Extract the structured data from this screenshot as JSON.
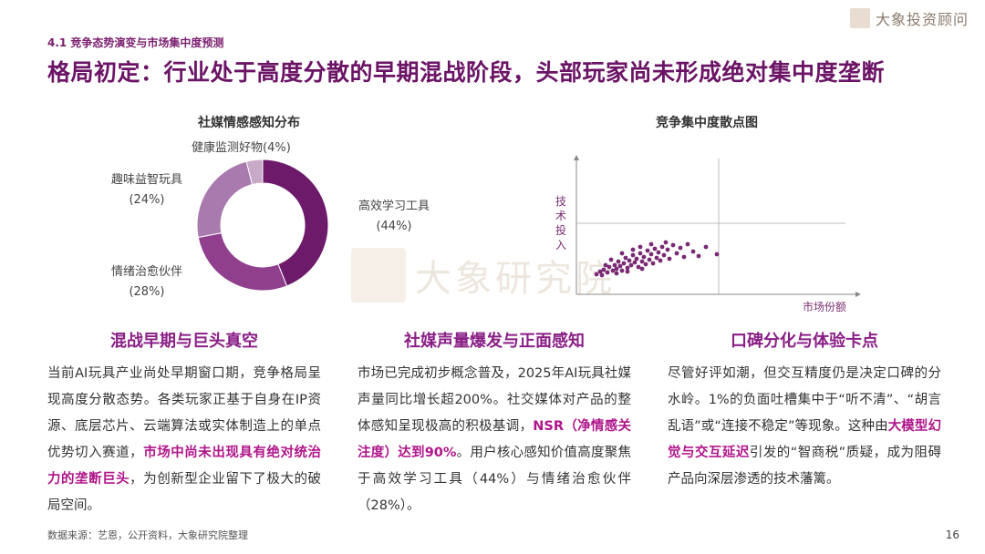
{
  "header": {
    "section": "4.1  竞争态势演变与市场集中度预测",
    "title": "格局初定：行业处于高度分散的早期混战阶段，头部玩家尚未形成绝对集中度垄断",
    "brand": "大象投资顾问"
  },
  "watermark": "大象研究院",
  "donut": {
    "title": "社媒情感感知分布",
    "slices": [
      {
        "name": "高效学习工具",
        "pct": "(44%)",
        "value": 44,
        "color": "#6d1a6a"
      },
      {
        "name": "情绪治愈伙伴",
        "pct": "(28%)",
        "value": 28,
        "color": "#8f3f8c"
      },
      {
        "name": "趣味益智玩具",
        "pct": "(24%)",
        "value": 24,
        "color": "#a87aad"
      },
      {
        "name": "健康监测好物(4%)",
        "pct": "",
        "value": 4,
        "color": "#c8a9c8"
      }
    ]
  },
  "chart_data": {
    "type": "scatter",
    "title": "竞争集中度散点图",
    "xlabel": "市场份额",
    "ylabel": "技术投入",
    "points": [
      [
        0.6,
        0.6
      ],
      [
        0.8,
        0.9
      ],
      [
        1.0,
        1.1
      ],
      [
        1.2,
        0.8
      ],
      [
        1.3,
        1.4
      ],
      [
        1.5,
        1.0
      ],
      [
        1.6,
        1.6
      ],
      [
        1.7,
        1.2
      ],
      [
        1.8,
        2.0
      ],
      [
        1.9,
        1.5
      ],
      [
        2.0,
        1.0
      ],
      [
        2.1,
        1.8
      ],
      [
        2.2,
        2.4
      ],
      [
        2.3,
        1.3
      ],
      [
        2.4,
        2.1
      ],
      [
        2.5,
        1.6
      ],
      [
        2.6,
        2.7
      ],
      [
        2.7,
        1.9
      ],
      [
        2.8,
        2.3
      ],
      [
        2.9,
        1.4
      ],
      [
        3.0,
        2.9
      ],
      [
        3.1,
        2.0
      ],
      [
        3.2,
        2.5
      ],
      [
        3.3,
        1.7
      ],
      [
        3.4,
        3.2
      ],
      [
        3.5,
        2.2
      ],
      [
        3.6,
        2.8
      ],
      [
        3.7,
        1.8
      ],
      [
        3.8,
        3.4
      ],
      [
        3.9,
        2.4
      ],
      [
        4.0,
        3.0
      ],
      [
        4.1,
        2.1
      ],
      [
        4.2,
        3.6
      ],
      [
        4.3,
        2.7
      ],
      [
        4.5,
        3.3
      ],
      [
        4.6,
        2.3
      ],
      [
        4.8,
        3.8
      ],
      [
        5.0,
        2.9
      ],
      [
        5.2,
        3.5
      ],
      [
        5.4,
        2.5
      ],
      [
        5.6,
        3.9
      ],
      [
        5.9,
        3.1
      ],
      [
        6.2,
        2.6
      ],
      [
        6.6,
        3.6
      ],
      [
        7.2,
        2.8
      ],
      [
        1.4,
        2.2
      ],
      [
        2.0,
        2.9
      ],
      [
        3.0,
        3.6
      ],
      [
        3.6,
        3.9
      ],
      [
        2.6,
        3.3
      ],
      [
        4.4,
        4.1
      ],
      [
        1.1,
        1.6
      ],
      [
        0.9,
        0.5
      ],
      [
        1.7,
        0.7
      ],
      [
        2.3,
        0.9
      ],
      [
        3.1,
        1.2
      ]
    ]
  },
  "columns": [
    {
      "heading": "混战早期与巨头真空",
      "segments": [
        {
          "text": "当前AI玩具产业尚处早期窗口期，竞争格局呈现高度分散态势。各类玩家正基于自身在IP资源、底层芯片、云端算法或实体制造上的单点优势切入赛道，",
          "hl": false
        },
        {
          "text": "市场中尚未出现具有绝对统治力的垄断巨头",
          "hl": true
        },
        {
          "text": "，为创新型企业留下了极大的破局空间。",
          "hl": false
        }
      ]
    },
    {
      "heading": "社媒声量爆发与正面感知",
      "segments": [
        {
          "text": "市场已完成初步概念普及，2025年AI玩具社媒声量同比增长超200%。社交媒体对产品的整体感知呈现极高的积极基调，",
          "hl": false
        },
        {
          "text": "NSR（净情感关注度）达到90%",
          "hl": true
        },
        {
          "text": "。用户核心感知价值高度聚焦于高效学习工具（44%）与情绪治愈伙伴（28%）。",
          "hl": false
        }
      ]
    },
    {
      "heading": "口碑分化与体验卡点",
      "segments": [
        {
          "text": "尽管好评如潮，但交互精度仍是决定口碑的分水岭。1%的负面吐槽集中于“听不清”、“胡言乱语”或“连接不稳定”等现象。这种由",
          "hl": false
        },
        {
          "text": "大模型幻觉与交互延迟",
          "hl": true
        },
        {
          "text": "引发的“智商税”质疑，成为阻碍产品向深层渗透的技术藩篱。",
          "hl": false
        }
      ]
    }
  ],
  "footer": {
    "source": "数据来源：艺恩，公开资料，大象研究院整理",
    "page": "16"
  }
}
